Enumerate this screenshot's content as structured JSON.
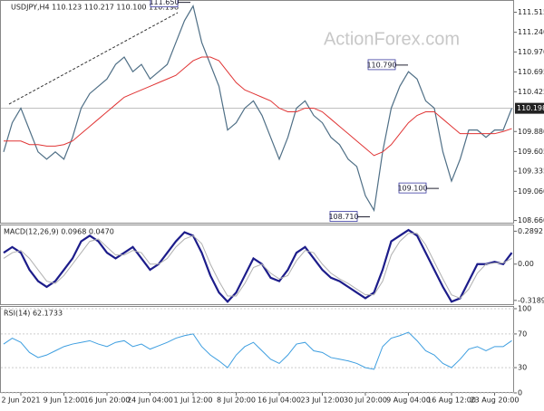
{
  "chart_data": [
    {
      "type": "line",
      "title": "USDJPY,H4  110.123 110.217 110.100 110.198",
      "watermark": "ActionForex.com",
      "ylim": [
        108.63,
        111.67
      ],
      "yticks": [
        {
          "value": 111.515,
          "label": "111.515"
        },
        {
          "value": 111.24,
          "label": "111.240"
        },
        {
          "value": 110.97,
          "label": "110.970"
        },
        {
          "value": 110.695,
          "label": "110.695"
        },
        {
          "value": 110.425,
          "label": "110.425"
        },
        {
          "value": 109.88,
          "label": "109.880"
        },
        {
          "value": 109.605,
          "label": "109.605"
        },
        {
          "value": 109.335,
          "label": "109.335"
        },
        {
          "value": 109.06,
          "label": "109.060"
        },
        {
          "value": 108.66,
          "label": "108.660"
        }
      ],
      "current": {
        "value": 110.198,
        "label": "110.198"
      },
      "annotations": [
        {
          "value": 111.65,
          "label": "111.650"
        },
        {
          "value": 110.79,
          "label": "110.790"
        },
        {
          "value": 109.1,
          "label": "109.100"
        },
        {
          "value": 108.71,
          "label": "108.710"
        }
      ],
      "series": [
        {
          "color": "#4f6f86",
          "width": 1.2,
          "values": [
            109.6,
            110.0,
            110.2,
            109.9,
            109.6,
            109.5,
            109.6,
            109.5,
            109.8,
            110.2,
            110.4,
            110.5,
            110.6,
            110.8,
            110.9,
            110.7,
            110.8,
            110.6,
            110.7,
            110.8,
            111.1,
            111.4,
            111.6,
            111.1,
            110.8,
            110.5,
            109.9,
            110.0,
            110.2,
            110.3,
            110.1,
            109.8,
            109.5,
            109.8,
            110.2,
            110.3,
            110.1,
            110.0,
            109.8,
            109.7,
            109.5,
            109.4,
            109.0,
            108.8,
            109.6,
            110.2,
            110.5,
            110.7,
            110.6,
            110.3,
            110.2,
            109.6,
            109.2,
            109.5,
            109.9,
            109.9,
            109.8,
            109.9,
            109.9,
            110.2
          ]
        },
        {
          "color": "#e03434",
          "width": 1,
          "values": [
            109.75,
            109.75,
            109.75,
            109.7,
            109.7,
            109.68,
            109.68,
            109.7,
            109.75,
            109.85,
            109.95,
            110.05,
            110.15,
            110.25,
            110.35,
            110.4,
            110.45,
            110.5,
            110.55,
            110.6,
            110.65,
            110.75,
            110.85,
            110.9,
            110.9,
            110.85,
            110.7,
            110.55,
            110.45,
            110.4,
            110.35,
            110.3,
            110.2,
            110.15,
            110.15,
            110.2,
            110.2,
            110.15,
            110.05,
            109.95,
            109.85,
            109.75,
            109.65,
            109.55,
            109.6,
            109.7,
            109.85,
            110.0,
            110.1,
            110.15,
            110.15,
            110.05,
            109.95,
            109.85,
            109.85,
            109.85,
            109.85,
            109.85,
            109.88,
            109.92
          ]
        }
      ]
    },
    {
      "type": "line",
      "title": "MACD(12,26,9) 0.0968 0.0470",
      "ylim": [
        -0.36,
        0.34
      ],
      "yticks": [
        0.2892,
        {
          "value": 0,
          "label": "0.00"
        },
        -0.3189
      ],
      "series": [
        {
          "color": "#1c1c8a",
          "width": 2.2,
          "values": [
            0.1,
            0.15,
            0.1,
            -0.05,
            -0.15,
            -0.2,
            -0.15,
            -0.05,
            0.05,
            0.2,
            0.25,
            0.2,
            0.1,
            0.05,
            0.1,
            0.15,
            0.05,
            -0.05,
            0.0,
            0.1,
            0.2,
            0.28,
            0.25,
            0.1,
            -0.1,
            -0.25,
            -0.33,
            -0.25,
            -0.1,
            0.05,
            0.0,
            -0.12,
            -0.15,
            -0.05,
            0.1,
            0.15,
            0.05,
            -0.05,
            -0.12,
            -0.15,
            -0.2,
            -0.25,
            -0.3,
            -0.25,
            -0.05,
            0.2,
            0.25,
            0.3,
            0.25,
            0.1,
            -0.05,
            -0.2,
            -0.33,
            -0.3,
            -0.15,
            0.0,
            0.0,
            0.02,
            0.0,
            0.1
          ]
        },
        {
          "color": "#b0b0b0",
          "width": 1,
          "values": [
            0.05,
            0.1,
            0.12,
            0.05,
            -0.05,
            -0.15,
            -0.17,
            -0.1,
            0.0,
            0.1,
            0.2,
            0.22,
            0.15,
            0.08,
            0.08,
            0.12,
            0.1,
            0.0,
            0.0,
            0.05,
            0.15,
            0.22,
            0.25,
            0.18,
            0.0,
            -0.15,
            -0.28,
            -0.28,
            -0.17,
            -0.03,
            0.0,
            -0.08,
            -0.13,
            -0.1,
            0.03,
            0.12,
            0.1,
            0.0,
            -0.08,
            -0.13,
            -0.17,
            -0.22,
            -0.27,
            -0.27,
            -0.15,
            0.08,
            0.2,
            0.27,
            0.27,
            0.17,
            0.02,
            -0.13,
            -0.27,
            -0.3,
            -0.22,
            -0.08,
            0.0,
            0.01,
            0.01,
            0.05
          ]
        }
      ]
    },
    {
      "type": "line",
      "title": "RSI(14) 62.1733",
      "ylim": [
        0,
        100
      ],
      "yticks": [
        100,
        70,
        30,
        0
      ],
      "categories": [
        null,
        null,
        "2 Jun 2021",
        null,
        null,
        null,
        null,
        "9 Jun 12:00",
        null,
        null,
        null,
        null,
        "16 Jun 20:00",
        null,
        null,
        null,
        null,
        "24 Jun 04:00",
        null,
        null,
        null,
        null,
        "1 Jul 12:00",
        null,
        null,
        null,
        null,
        "8 Jul 20:00",
        null,
        null,
        null,
        null,
        "16 Jul 04:00",
        null,
        null,
        null,
        null,
        "23 Jul 12:00",
        null,
        null,
        null,
        null,
        "30 Jul 20:00",
        null,
        null,
        null,
        null,
        "9 Aug 04:00",
        null,
        null,
        null,
        null,
        "16 Aug 12:00",
        null,
        null,
        null,
        null,
        "23 Aug 20:00",
        null,
        null
      ],
      "series": [
        {
          "color": "#3d9ee0",
          "width": 1,
          "values": [
            58,
            65,
            60,
            48,
            42,
            45,
            50,
            55,
            58,
            60,
            62,
            58,
            55,
            60,
            62,
            55,
            58,
            52,
            56,
            60,
            65,
            68,
            70,
            55,
            45,
            38,
            30,
            45,
            55,
            60,
            50,
            40,
            35,
            45,
            58,
            60,
            50,
            48,
            42,
            40,
            38,
            35,
            30,
            28,
            55,
            65,
            68,
            72,
            62,
            50,
            45,
            35,
            30,
            40,
            52,
            55,
            50,
            55,
            55,
            62
          ]
        }
      ]
    }
  ]
}
